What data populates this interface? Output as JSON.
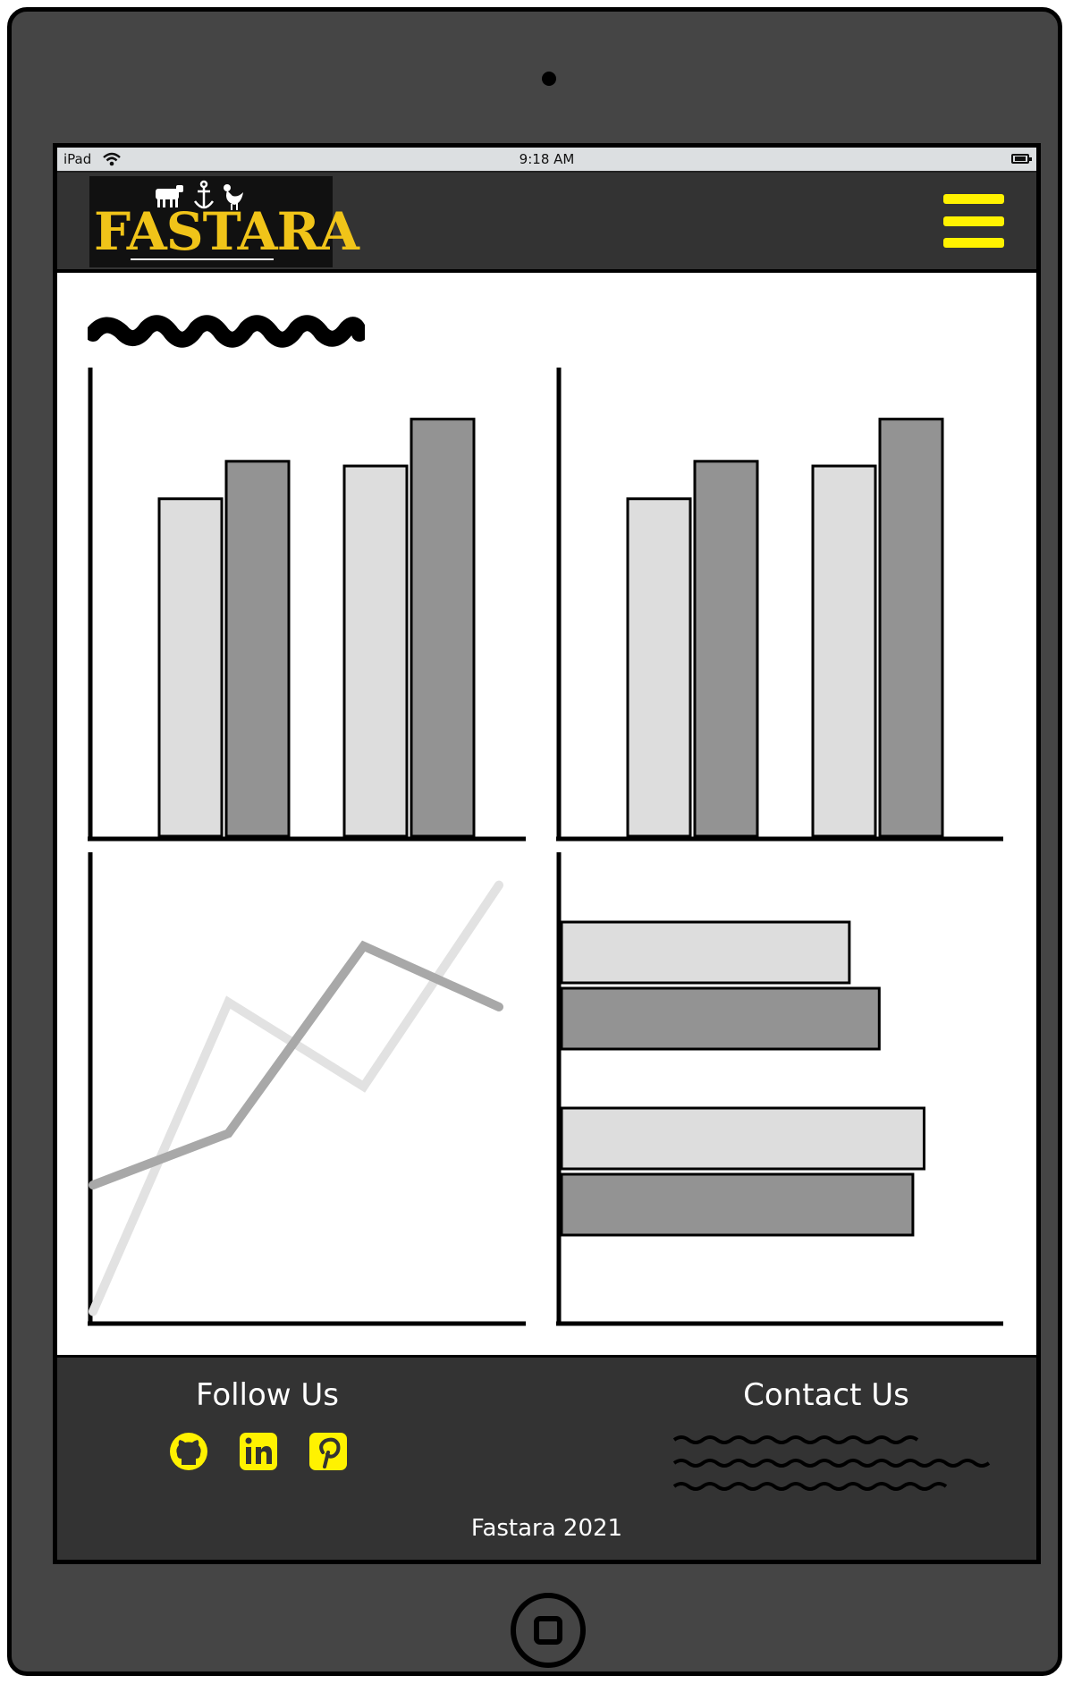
{
  "status_bar": {
    "device": "iPad",
    "time": "9:18 AM"
  },
  "header": {
    "logo_text": "FASTARA",
    "logo_icons": [
      "cow-icon",
      "anchor-icon",
      "rooster-icon"
    ],
    "menu_icon": "hamburger-menu-icon",
    "accent_color": "#fff200",
    "logo_color": "#f0c419"
  },
  "chart_data": [
    {
      "type": "bar",
      "categories": [
        "",
        ""
      ],
      "series": [
        {
          "values": [
            0.72,
            0.79
          ],
          "color": "#dddddd"
        },
        {
          "values": [
            0.8,
            0.89
          ],
          "color": "#939393"
        }
      ],
      "ylim": [
        0,
        1
      ]
    },
    {
      "type": "bar",
      "categories": [
        "",
        ""
      ],
      "series": [
        {
          "values": [
            0.72,
            0.79
          ],
          "color": "#dddddd"
        },
        {
          "values": [
            0.8,
            0.89
          ],
          "color": "#939393"
        }
      ],
      "ylim": [
        0,
        1
      ]
    },
    {
      "type": "line",
      "x": [
        0,
        1,
        2,
        3
      ],
      "series": [
        {
          "values": [
            0.02,
            0.68,
            0.5,
            0.93
          ],
          "color": "#e2e2e2"
        },
        {
          "values": [
            0.29,
            0.4,
            0.8,
            0.67
          ],
          "color": "#a8a8a8"
        }
      ],
      "xlim": [
        0,
        3
      ],
      "ylim": [
        0,
        1
      ]
    },
    {
      "type": "bar",
      "orientation": "horizontal",
      "categories": [
        "",
        ""
      ],
      "series": [
        {
          "values": [
            0.77,
            0.97
          ],
          "color": "#dddddd"
        },
        {
          "values": [
            0.85,
            0.94
          ],
          "color": "#939393"
        }
      ],
      "xlim": [
        0,
        1
      ]
    }
  ],
  "footer": {
    "follow_title": "Follow Us",
    "social": [
      "github-icon",
      "linkedin-icon",
      "pinterest-icon"
    ],
    "contact_title": "Contact Us",
    "copyright": "Fastara 2021"
  }
}
